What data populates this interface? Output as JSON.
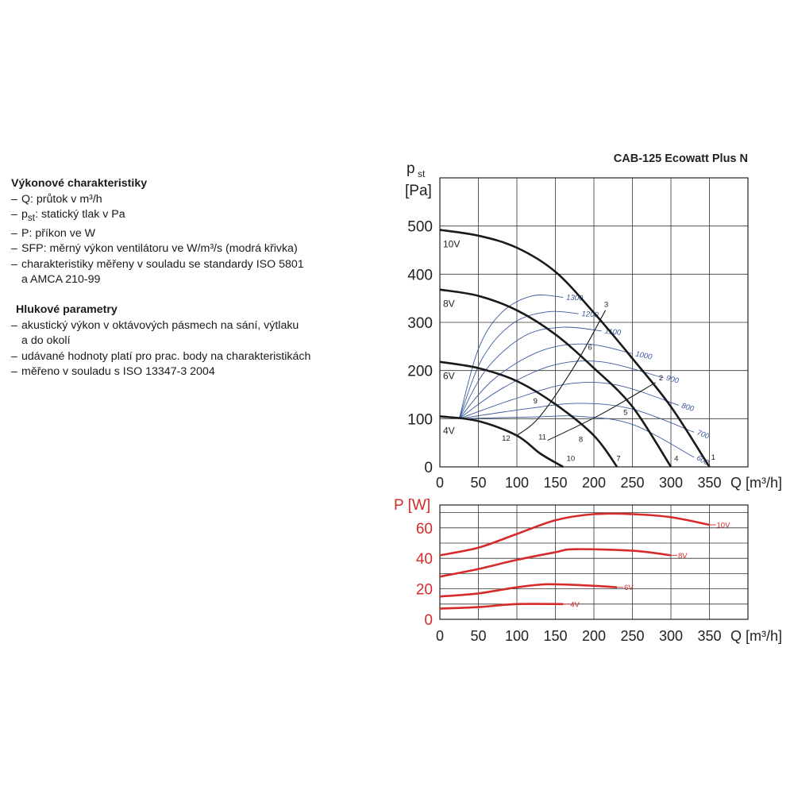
{
  "info": {
    "performance_heading": "Výkonové charakteristiky",
    "performance_items": [
      "Q: průtok v m³/h",
      "p<sub>st</sub>: statický tlak v Pa",
      "P: příkon ve W",
      "SFP: měrný výkon ventilátoru ve W/m³/s (modrá křivka)",
      "charakteristiky měřeny v souladu se standardy ISO 5801",
      "a AMCA 210-99"
    ],
    "noise_heading": "Hlukové parametry",
    "noise_items": [
      "akustický výkon v oktávových pásmech na sání, výtlaku",
      "a do okolí",
      "udávané hodnoty platí pro prac. body na charakteristikách",
      "měřeno v souladu s ISO 13347-3 2004"
    ]
  },
  "chart_data": [
    {
      "type": "line",
      "title": "CAB-125 Ecowatt Plus N",
      "ylabel_top": "p",
      "ylabel_sub": "st",
      "ylabel_unit": "[Pa]",
      "xlabel": "Q [m³/h]",
      "xlim": [
        0,
        400
      ],
      "ylim": [
        0,
        600
      ],
      "x_ticks": [
        "0",
        "50",
        "100",
        "150",
        "200",
        "250",
        "300",
        "350"
      ],
      "y_ticks": [
        "0",
        "100",
        "200",
        "300",
        "400",
        "500"
      ],
      "grid": true,
      "colors": {
        "fan": "#1a1a1a",
        "sfp": "#3a5a9a",
        "system": "#1a1a1a"
      },
      "fan_curves": [
        {
          "name": "10V",
          "points": [
            [
              0,
              492
            ],
            [
              50,
              480
            ],
            [
              100,
              455
            ],
            [
              150,
              405
            ],
            [
              200,
              320
            ],
            [
              250,
              225
            ],
            [
              300,
              125
            ],
            [
              350,
              0
            ]
          ]
        },
        {
          "name": "8V",
          "points": [
            [
              0,
              368
            ],
            [
              50,
              355
            ],
            [
              100,
              325
            ],
            [
              150,
              275
            ],
            [
              200,
              205
            ],
            [
              250,
              125
            ],
            [
              300,
              0
            ]
          ]
        },
        {
          "name": "6V",
          "points": [
            [
              0,
              218
            ],
            [
              50,
              205
            ],
            [
              100,
              178
            ],
            [
              150,
              130
            ],
            [
              200,
              65
            ],
            [
              230,
              0
            ]
          ]
        },
        {
          "name": "4V",
          "points": [
            [
              0,
              105
            ],
            [
              50,
              95
            ],
            [
              100,
              65
            ],
            [
              130,
              28
            ],
            [
              160,
              0
            ]
          ]
        }
      ],
      "sfp_curves": [
        {
          "name": "1300",
          "points": [
            [
              25,
              100
            ],
            [
              50,
              245
            ],
            [
              80,
              320
            ],
            [
              120,
              355
            ],
            [
              160,
              352
            ]
          ]
        },
        {
          "name": "1200",
          "points": [
            [
              25,
              100
            ],
            [
              55,
              225
            ],
            [
              95,
              298
            ],
            [
              140,
              322
            ],
            [
              180,
              318
            ]
          ]
        },
        {
          "name": "1100",
          "points": [
            [
              25,
              100
            ],
            [
              60,
              202
            ],
            [
              110,
              272
            ],
            [
              160,
              290
            ],
            [
              210,
              282
            ]
          ]
        },
        {
          "name": "1000",
          "points": [
            [
              25,
              100
            ],
            [
              70,
              182
            ],
            [
              130,
              240
            ],
            [
              190,
              255
            ],
            [
              250,
              235
            ]
          ]
        },
        {
          "name": "900",
          "points": [
            [
              25,
              100
            ],
            [
              80,
              162
            ],
            [
              145,
              210
            ],
            [
              210,
              218
            ],
            [
              290,
              185
            ]
          ]
        },
        {
          "name": "800",
          "points": [
            [
              25,
              100
            ],
            [
              95,
              140
            ],
            [
              165,
              172
            ],
            [
              230,
              170
            ],
            [
              310,
              128
            ]
          ]
        },
        {
          "name": "700",
          "points": [
            [
              25,
              100
            ],
            [
              110,
              120
            ],
            [
              180,
              132
            ],
            [
              250,
              120
            ],
            [
              330,
              72
            ]
          ]
        },
        {
          "name": "600",
          "points": [
            [
              25,
              100
            ],
            [
              130,
              104
            ],
            [
              180,
              105
            ],
            [
              250,
              88
            ],
            [
              330,
              20
            ]
          ]
        }
      ],
      "system_curves": [
        {
          "points": [
            [
              100,
              65
            ],
            [
              130,
              105
            ],
            [
              175,
              210
            ],
            [
              215,
              325
            ]
          ]
        },
        {
          "points": [
            [
              140,
              55
            ],
            [
              210,
              110
            ],
            [
              280,
              175
            ]
          ]
        }
      ],
      "point_labels": [
        {
          "label": "1",
          "x": 355,
          "y": 15
        },
        {
          "label": "2",
          "x": 287,
          "y": 180
        },
        {
          "label": "3",
          "x": 216,
          "y": 332
        },
        {
          "label": "4",
          "x": 307,
          "y": 12
        },
        {
          "label": "5",
          "x": 241,
          "y": 108
        },
        {
          "label": "6",
          "x": 195,
          "y": 243
        },
        {
          "label": "7",
          "x": 232,
          "y": 12
        },
        {
          "label": "8",
          "x": 183,
          "y": 52
        },
        {
          "label": "9",
          "x": 124,
          "y": 132
        },
        {
          "label": "10",
          "x": 170,
          "y": 12
        },
        {
          "label": "11",
          "x": 133,
          "y": 57
        },
        {
          "label": "12",
          "x": 86,
          "y": 54
        }
      ]
    },
    {
      "type": "line",
      "ylabel": "P [W]",
      "xlabel": "Q [m³/h]",
      "xlim": [
        0,
        400
      ],
      "ylim": [
        0,
        75
      ],
      "x_ticks": [
        "0",
        "50",
        "100",
        "150",
        "200",
        "250",
        "300",
        "350"
      ],
      "y_ticks": [
        "0",
        "20",
        "40",
        "60"
      ],
      "grid": true,
      "color": "#d62b2b",
      "series": [
        {
          "name": "10V",
          "points": [
            [
              0,
              42
            ],
            [
              50,
              47
            ],
            [
              100,
              56
            ],
            [
              150,
              65
            ],
            [
              200,
              69
            ],
            [
              250,
              69
            ],
            [
              300,
              67
            ],
            [
              350,
              62
            ]
          ]
        },
        {
          "name": "8V",
          "points": [
            [
              0,
              28
            ],
            [
              50,
              33
            ],
            [
              100,
              39
            ],
            [
              150,
              44
            ],
            [
              175,
              46
            ],
            [
              250,
              45
            ],
            [
              300,
              42
            ]
          ]
        },
        {
          "name": "6V",
          "points": [
            [
              0,
              15
            ],
            [
              50,
              17
            ],
            [
              100,
              21
            ],
            [
              140,
              23
            ],
            [
              200,
              22
            ],
            [
              230,
              21
            ]
          ]
        },
        {
          "name": "4V",
          "points": [
            [
              0,
              7
            ],
            [
              50,
              8
            ],
            [
              100,
              10
            ],
            [
              160,
              10
            ]
          ]
        }
      ]
    }
  ]
}
